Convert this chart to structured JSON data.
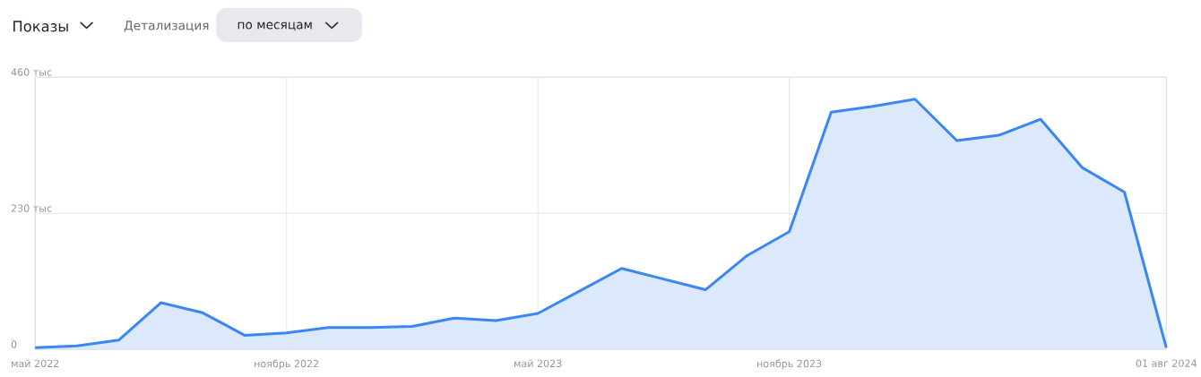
{
  "chart_data": {
    "type": "area",
    "title": "Показы",
    "annotations": [
      "Детализация",
      "по месяцам"
    ],
    "categories": [
      "май 2022",
      null,
      null,
      null,
      null,
      null,
      "ноябрь 2022",
      null,
      null,
      null,
      null,
      null,
      "май 2023",
      null,
      null,
      null,
      null,
      null,
      "ноябрь 2023",
      null,
      null,
      null,
      null,
      null,
      null,
      null,
      null,
      "01 авг 2024"
    ],
    "series": [
      {
        "color": "#3b86f5",
        "values": [
          3,
          6,
          16,
          79,
          62,
          24,
          28,
          37,
          37,
          39,
          53,
          49,
          61,
          99,
          137,
          119,
          101,
          159,
          199,
          401,
          411,
          423,
          353,
          362,
          389,
          307,
          266,
          3
        ]
      }
    ],
    "ylim": [
      0,
      460
    ],
    "yticks": [
      0,
      {
        "value": 230,
        "label": "230 тыс"
      },
      {
        "value": 460,
        "label": "460 тыс"
      }
    ],
    "grid": true
  }
}
